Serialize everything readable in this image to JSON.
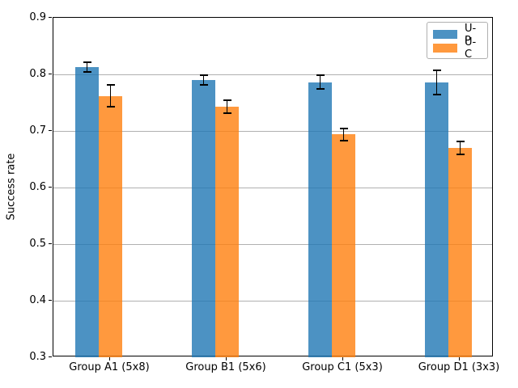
{
  "chart_data": {
    "type": "bar",
    "title": "",
    "xlabel": "",
    "ylabel": "Success rate",
    "categories": [
      "Group A1 (5x8)",
      "Group B1 (5x6)",
      "Group C1 (5x3)",
      "Group D1 (3x3)"
    ],
    "series": [
      {
        "name": "U-P",
        "color": "#1f77b4",
        "values": [
          0.813,
          0.79,
          0.786,
          0.786
        ],
        "errors": [
          0.009,
          0.008,
          0.012,
          0.021
        ]
      },
      {
        "name": "U-C",
        "color": "#ff7f0e",
        "values": [
          0.762,
          0.743,
          0.694,
          0.67
        ],
        "errors": [
          0.019,
          0.012,
          0.011,
          0.011
        ]
      }
    ],
    "bar_alpha": 0.8,
    "error_bar_color": "#000000",
    "ylim": [
      0.3,
      0.9
    ],
    "yticks": [
      0.3,
      0.4,
      0.5,
      0.6,
      0.7,
      0.8,
      0.9
    ],
    "ytick_labels": [
      "0.3",
      "0.4",
      "0.5",
      "0.6",
      "0.7",
      "0.8",
      "0.9"
    ],
    "grid": "horizontal",
    "grid_color": "#b0b0b0",
    "legend": {
      "position": "upper right",
      "entries": [
        "U-P",
        "U-C"
      ]
    }
  }
}
